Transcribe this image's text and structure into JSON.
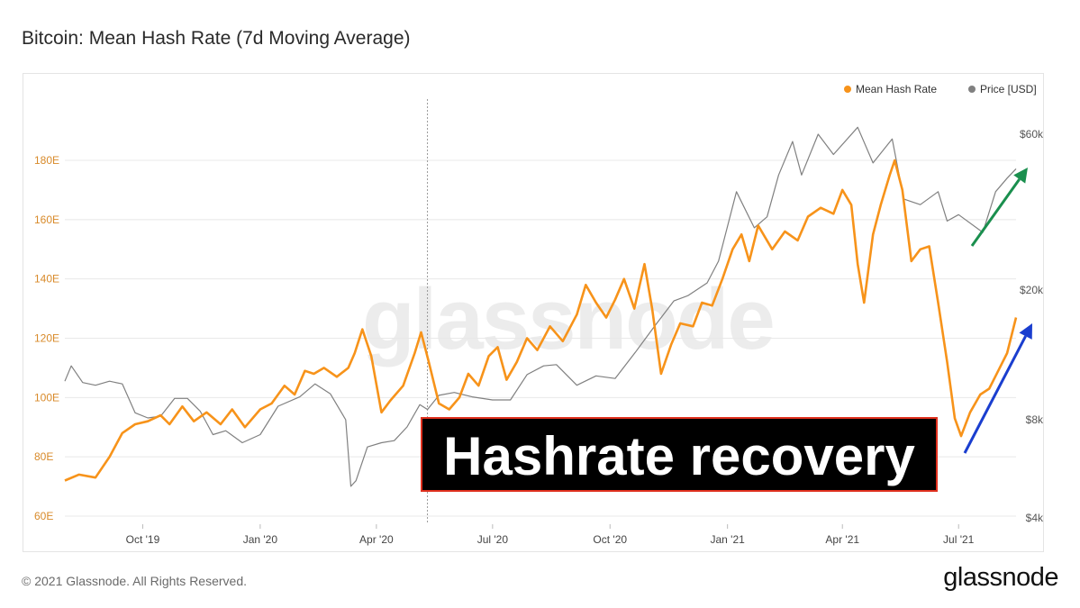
{
  "header": {
    "title": "Bitcoin: Mean Hash Rate (7d Moving Average)"
  },
  "footer": {
    "copyright": "© 2021 Glassnode. All Rights Reserved.",
    "logo_text": "glassnode"
  },
  "watermark": "glassnode",
  "annotation": {
    "text": "Hashrate recovery",
    "arrow_colors": {
      "price": "#1a8f4e",
      "hashrate": "#1a3ecf"
    }
  },
  "colors": {
    "hash_rate": "#f7931a",
    "price": "#808080",
    "grid": "#e8e8e8",
    "left_axis_text": "#d88a2a"
  },
  "chart_data": {
    "type": "line",
    "title": "Bitcoin: Mean Hash Rate (7d Moving Average)",
    "legend": {
      "position": "top-right",
      "entries": [
        "Mean Hash Rate",
        "Price [USD]"
      ]
    },
    "grid": true,
    "x_range": [
      "2019-08-01",
      "2021-08-15"
    ],
    "x_ticks": [
      {
        "date": "2019-10-01",
        "label": "Oct '19"
      },
      {
        "date": "2020-01-01",
        "label": "Jan '20"
      },
      {
        "date": "2020-04-01",
        "label": "Apr '20"
      },
      {
        "date": "2020-07-01",
        "label": "Jul '20"
      },
      {
        "date": "2020-10-01",
        "label": "Oct '20"
      },
      {
        "date": "2021-01-01",
        "label": "Jan '21"
      },
      {
        "date": "2021-04-01",
        "label": "Apr '21"
      },
      {
        "date": "2021-07-01",
        "label": "Jul '21"
      }
    ],
    "y_left": {
      "range": [
        60,
        200
      ],
      "unit": "E",
      "ticks": [
        {
          "value": 60,
          "label": "60E"
        },
        {
          "value": 80,
          "label": "80E"
        },
        {
          "value": 100,
          "label": "100E"
        },
        {
          "value": 120,
          "label": "120E"
        },
        {
          "value": 140,
          "label": "140E"
        },
        {
          "value": 160,
          "label": "160E"
        },
        {
          "value": 180,
          "label": "180E"
        }
      ]
    },
    "y_right": {
      "scale": "log",
      "range": [
        4000,
        110000
      ],
      "ticks": [
        {
          "value": 4000,
          "label": "$4k"
        },
        {
          "value": 8000,
          "label": "$8k"
        },
        {
          "value": 20000,
          "label": "$20k"
        },
        {
          "value": 60000,
          "label": "$60k"
        }
      ]
    },
    "event_line": "2020-05-11",
    "series": [
      {
        "name": "Mean Hash Rate",
        "axis": "left",
        "data": [
          [
            "2019-08-01",
            72
          ],
          [
            "2019-08-12",
            74
          ],
          [
            "2019-08-25",
            73
          ],
          [
            "2019-09-05",
            80
          ],
          [
            "2019-09-15",
            88
          ],
          [
            "2019-09-25",
            91
          ],
          [
            "2019-10-05",
            92
          ],
          [
            "2019-10-15",
            94
          ],
          [
            "2019-10-22",
            91
          ],
          [
            "2019-11-01",
            97
          ],
          [
            "2019-11-10",
            92
          ],
          [
            "2019-11-20",
            95
          ],
          [
            "2019-12-01",
            91
          ],
          [
            "2019-12-10",
            96
          ],
          [
            "2019-12-20",
            90
          ],
          [
            "2020-01-01",
            96
          ],
          [
            "2020-01-10",
            98
          ],
          [
            "2020-01-20",
            104
          ],
          [
            "2020-01-28",
            101
          ],
          [
            "2020-02-05",
            109
          ],
          [
            "2020-02-12",
            108
          ],
          [
            "2020-02-20",
            110
          ],
          [
            "2020-03-01",
            107
          ],
          [
            "2020-03-10",
            110
          ],
          [
            "2020-03-15",
            115
          ],
          [
            "2020-03-21",
            123
          ],
          [
            "2020-03-28",
            114
          ],
          [
            "2020-04-05",
            95
          ],
          [
            "2020-04-12",
            99
          ],
          [
            "2020-04-22",
            104
          ],
          [
            "2020-05-01",
            115
          ],
          [
            "2020-05-06",
            122
          ],
          [
            "2020-05-12",
            112
          ],
          [
            "2020-05-20",
            98
          ],
          [
            "2020-05-28",
            96
          ],
          [
            "2020-06-05",
            100
          ],
          [
            "2020-06-12",
            108
          ],
          [
            "2020-06-20",
            104
          ],
          [
            "2020-06-28",
            114
          ],
          [
            "2020-07-05",
            117
          ],
          [
            "2020-07-12",
            106
          ],
          [
            "2020-07-20",
            112
          ],
          [
            "2020-07-28",
            120
          ],
          [
            "2020-08-05",
            116
          ],
          [
            "2020-08-15",
            124
          ],
          [
            "2020-08-25",
            119
          ],
          [
            "2020-09-05",
            128
          ],
          [
            "2020-09-12",
            138
          ],
          [
            "2020-09-20",
            132
          ],
          [
            "2020-09-28",
            127
          ],
          [
            "2020-10-05",
            133
          ],
          [
            "2020-10-12",
            140
          ],
          [
            "2020-10-20",
            130
          ],
          [
            "2020-10-28",
            145
          ],
          [
            "2020-11-03",
            130
          ],
          [
            "2020-11-10",
            108
          ],
          [
            "2020-11-18",
            118
          ],
          [
            "2020-11-25",
            125
          ],
          [
            "2020-12-05",
            124
          ],
          [
            "2020-12-12",
            132
          ],
          [
            "2020-12-20",
            131
          ],
          [
            "2020-12-28",
            140
          ],
          [
            "2021-01-05",
            150
          ],
          [
            "2021-01-12",
            155
          ],
          [
            "2021-01-18",
            146
          ],
          [
            "2021-01-25",
            158
          ],
          [
            "2021-02-05",
            150
          ],
          [
            "2021-02-15",
            156
          ],
          [
            "2021-02-25",
            153
          ],
          [
            "2021-03-05",
            161
          ],
          [
            "2021-03-15",
            164
          ],
          [
            "2021-03-25",
            162
          ],
          [
            "2021-04-01",
            170
          ],
          [
            "2021-04-08",
            165
          ],
          [
            "2021-04-13",
            145
          ],
          [
            "2021-04-18",
            132
          ],
          [
            "2021-04-25",
            155
          ],
          [
            "2021-05-01",
            165
          ],
          [
            "2021-05-08",
            175
          ],
          [
            "2021-05-12",
            180
          ],
          [
            "2021-05-18",
            170
          ],
          [
            "2021-05-25",
            146
          ],
          [
            "2021-06-01",
            150
          ],
          [
            "2021-06-08",
            151
          ],
          [
            "2021-06-15",
            132
          ],
          [
            "2021-06-22",
            112
          ],
          [
            "2021-06-28",
            93
          ],
          [
            "2021-07-03",
            87
          ],
          [
            "2021-07-10",
            95
          ],
          [
            "2021-07-18",
            101
          ],
          [
            "2021-07-25",
            103
          ],
          [
            "2021-08-01",
            109
          ],
          [
            "2021-08-08",
            115
          ],
          [
            "2021-08-15",
            127
          ]
        ]
      },
      {
        "name": "Price [USD]",
        "axis": "right",
        "data": [
          [
            "2019-08-01",
            10500
          ],
          [
            "2019-08-06",
            11700
          ],
          [
            "2019-08-15",
            10400
          ],
          [
            "2019-08-25",
            10200
          ],
          [
            "2019-09-05",
            10500
          ],
          [
            "2019-09-15",
            10300
          ],
          [
            "2019-09-25",
            8400
          ],
          [
            "2019-10-05",
            8100
          ],
          [
            "2019-10-15",
            8200
          ],
          [
            "2019-10-26",
            9300
          ],
          [
            "2019-11-05",
            9300
          ],
          [
            "2019-11-15",
            8500
          ],
          [
            "2019-11-25",
            7200
          ],
          [
            "2019-12-05",
            7400
          ],
          [
            "2019-12-18",
            6800
          ],
          [
            "2020-01-01",
            7200
          ],
          [
            "2020-01-15",
            8800
          ],
          [
            "2020-02-01",
            9400
          ],
          [
            "2020-02-13",
            10300
          ],
          [
            "2020-02-25",
            9600
          ],
          [
            "2020-03-08",
            8000
          ],
          [
            "2020-03-12",
            5000
          ],
          [
            "2020-03-16",
            5200
          ],
          [
            "2020-03-25",
            6600
          ],
          [
            "2020-04-05",
            6800
          ],
          [
            "2020-04-15",
            6900
          ],
          [
            "2020-04-25",
            7600
          ],
          [
            "2020-05-05",
            8900
          ],
          [
            "2020-05-11",
            8600
          ],
          [
            "2020-05-20",
            9500
          ],
          [
            "2020-06-01",
            9700
          ],
          [
            "2020-06-15",
            9400
          ],
          [
            "2020-07-01",
            9200
          ],
          [
            "2020-07-15",
            9200
          ],
          [
            "2020-07-28",
            11000
          ],
          [
            "2020-08-10",
            11700
          ],
          [
            "2020-08-20",
            11800
          ],
          [
            "2020-09-05",
            10200
          ],
          [
            "2020-09-20",
            10900
          ],
          [
            "2020-10-05",
            10700
          ],
          [
            "2020-10-21",
            12900
          ],
          [
            "2020-11-05",
            15500
          ],
          [
            "2020-11-20",
            18500
          ],
          [
            "2020-12-01",
            19200
          ],
          [
            "2020-12-16",
            21000
          ],
          [
            "2020-12-25",
            24500
          ],
          [
            "2021-01-08",
            40000
          ],
          [
            "2021-01-22",
            31000
          ],
          [
            "2021-02-01",
            33500
          ],
          [
            "2021-02-10",
            45000
          ],
          [
            "2021-02-21",
            57000
          ],
          [
            "2021-02-28",
            45000
          ],
          [
            "2021-03-13",
            60000
          ],
          [
            "2021-03-25",
            52000
          ],
          [
            "2021-04-13",
            63000
          ],
          [
            "2021-04-25",
            49000
          ],
          [
            "2021-05-10",
            58000
          ],
          [
            "2021-05-19",
            38000
          ],
          [
            "2021-06-01",
            36500
          ],
          [
            "2021-06-15",
            40000
          ],
          [
            "2021-06-22",
            32500
          ],
          [
            "2021-07-01",
            34000
          ],
          [
            "2021-07-20",
            30000
          ],
          [
            "2021-07-30",
            40000
          ],
          [
            "2021-08-08",
            44000
          ],
          [
            "2021-08-15",
            47000
          ]
        ]
      }
    ]
  }
}
